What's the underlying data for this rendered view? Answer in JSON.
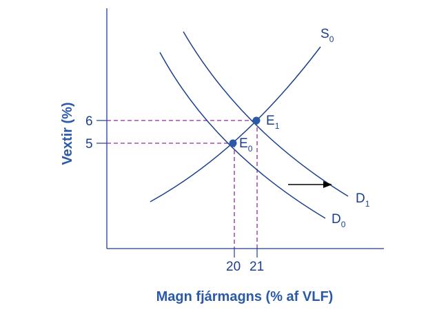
{
  "chart_data": {
    "type": "line",
    "xlabel": "Magn fjármagns (% af VLF)",
    "ylabel": "Vextir (%)",
    "x_ticks": [
      "20",
      "21"
    ],
    "y_ticks": [
      "5",
      "6"
    ],
    "series": [
      {
        "name": "S",
        "subscript": "0"
      },
      {
        "name": "D",
        "subscript": "0"
      },
      {
        "name": "D",
        "subscript": "1"
      }
    ],
    "points": [
      {
        "name": "E",
        "subscript": "0",
        "x": 20,
        "y": 5
      },
      {
        "name": "E",
        "subscript": "1",
        "x": 21,
        "y": 6
      }
    ],
    "shift_arrow": "right",
    "colors": {
      "curve": "#1a3f8c",
      "guide": "#8b2a9e",
      "arrow": "#000000",
      "axis_title": "#2a59a8"
    }
  }
}
